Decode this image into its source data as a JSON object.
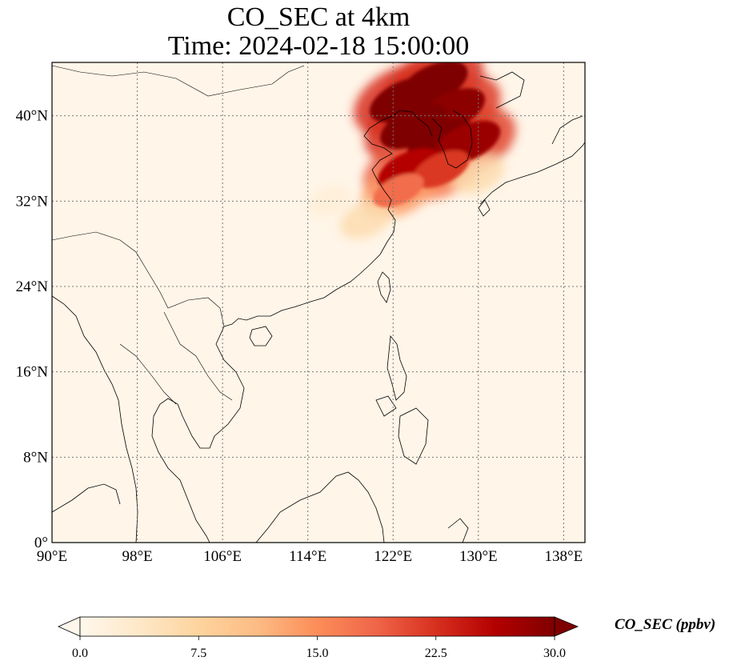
{
  "title": {
    "line1": "CO_SEC at 4km",
    "line2": "Time: 2024-02-18 15:00:00"
  },
  "map": {
    "extent": {
      "lon": [
        90,
        140
      ],
      "lat": [
        0,
        45
      ]
    },
    "lon_ticks": [
      90,
      98,
      106,
      114,
      122,
      130,
      138
    ],
    "lat_ticks": [
      0,
      8,
      16,
      24,
      32,
      40
    ],
    "lon_labels": [
      "90°E",
      "98°E",
      "106°E",
      "114°E",
      "122°E",
      "130°E",
      "138°E"
    ],
    "lat_labels": [
      "0°",
      "8°N",
      "16°N",
      "24°N",
      "32°N",
      "40°N"
    ],
    "gridlines": true,
    "colormap": "OrRd",
    "background_color": "#fff5e8",
    "coastline_color": "#000000"
  },
  "colorbar": {
    "label": "CO_SEC (ppbv)",
    "ticks": [
      "0.0",
      "7.5",
      "15.0",
      "22.5",
      "30.0"
    ],
    "range": [
      0,
      30
    ],
    "extend": "both",
    "colors": [
      "#fff7ec",
      "#fee8c8",
      "#fdd49e",
      "#fdbb84",
      "#fc8d59",
      "#ef6548",
      "#d7301f",
      "#b30000",
      "#7f0000"
    ]
  },
  "plumes": [
    {
      "lon": 125.8,
      "lat": 43.0,
      "value": 30
    },
    {
      "lon": 123.0,
      "lat": 41.5,
      "value": 30
    },
    {
      "lon": 127.5,
      "lat": 40.5,
      "value": 29
    },
    {
      "lon": 124.0,
      "lat": 39.0,
      "value": 30
    },
    {
      "lon": 126.5,
      "lat": 37.5,
      "value": 30
    },
    {
      "lon": 129.0,
      "lat": 37.5,
      "value": 28
    },
    {
      "lon": 123.5,
      "lat": 35.0,
      "value": 26
    },
    {
      "lon": 126.5,
      "lat": 35.0,
      "value": 22
    },
    {
      "lon": 122.5,
      "lat": 33.0,
      "value": 18
    },
    {
      "lon": 119.5,
      "lat": 30.3,
      "value": 8
    },
    {
      "lon": 130.0,
      "lat": 34.5,
      "value": 8
    },
    {
      "lon": 116.0,
      "lat": 32.0,
      "value": 3
    }
  ]
}
